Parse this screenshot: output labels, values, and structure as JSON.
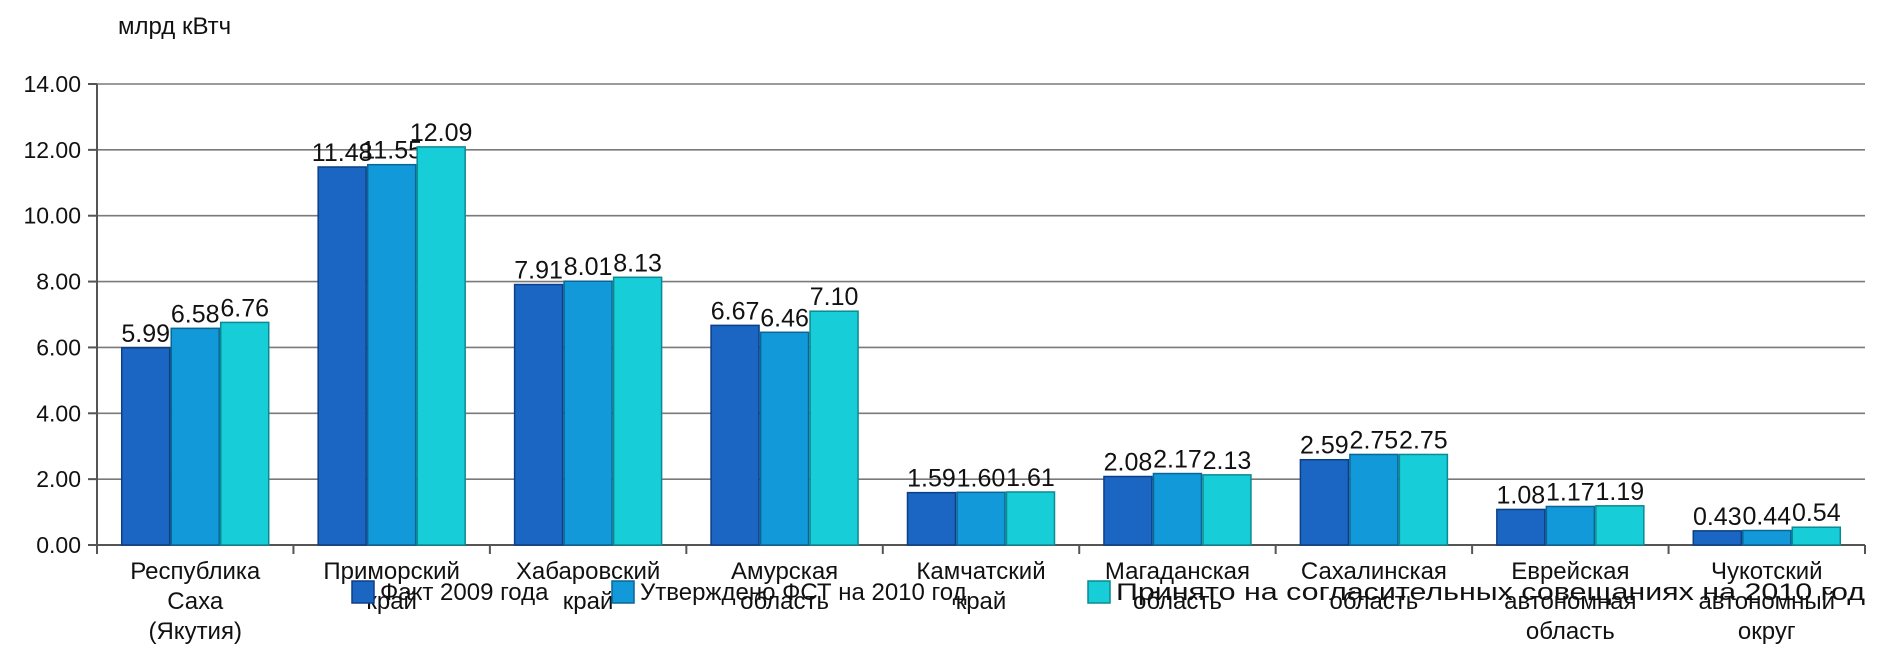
{
  "chart_data": {
    "type": "bar",
    "y_unit_label": "млрд кВтч",
    "categories": [
      [
        "Республика",
        "Саха",
        "(Якутия)"
      ],
      [
        "Приморский",
        "край"
      ],
      [
        "Хабаровский",
        "край"
      ],
      [
        "Амурская",
        "область"
      ],
      [
        "Камчатский",
        "край"
      ],
      [
        "Магаданская",
        "область"
      ],
      [
        "Сахалинская",
        "область"
      ],
      [
        "Еврейская",
        "автономная",
        "область"
      ],
      [
        "Чукотский",
        "автономный",
        "округ"
      ]
    ],
    "series": [
      {
        "name": "Факт 2009 года",
        "color": "#1a66c2",
        "values": [
          5.99,
          11.48,
          7.91,
          6.67,
          1.59,
          2.08,
          2.59,
          1.08,
          0.43
        ]
      },
      {
        "name": "Утверждено ФСТ на 2010 год",
        "color": "#1199d9",
        "values": [
          6.58,
          11.55,
          8.01,
          6.46,
          1.6,
          2.17,
          2.75,
          1.17,
          0.44
        ]
      },
      {
        "name": "Принято на согласительных совещаниях на 2010 год",
        "color": "#16cdd8",
        "values": [
          6.76,
          12.09,
          8.13,
          7.1,
          1.61,
          2.13,
          2.75,
          1.19,
          0.54
        ]
      }
    ],
    "ylim": [
      0,
      14
    ],
    "yticks": [
      "0.00",
      "2.00",
      "4.00",
      "6.00",
      "8.00",
      "10.00",
      "12.00",
      "14.00"
    ],
    "grid": true,
    "legend_position": "bottom"
  }
}
